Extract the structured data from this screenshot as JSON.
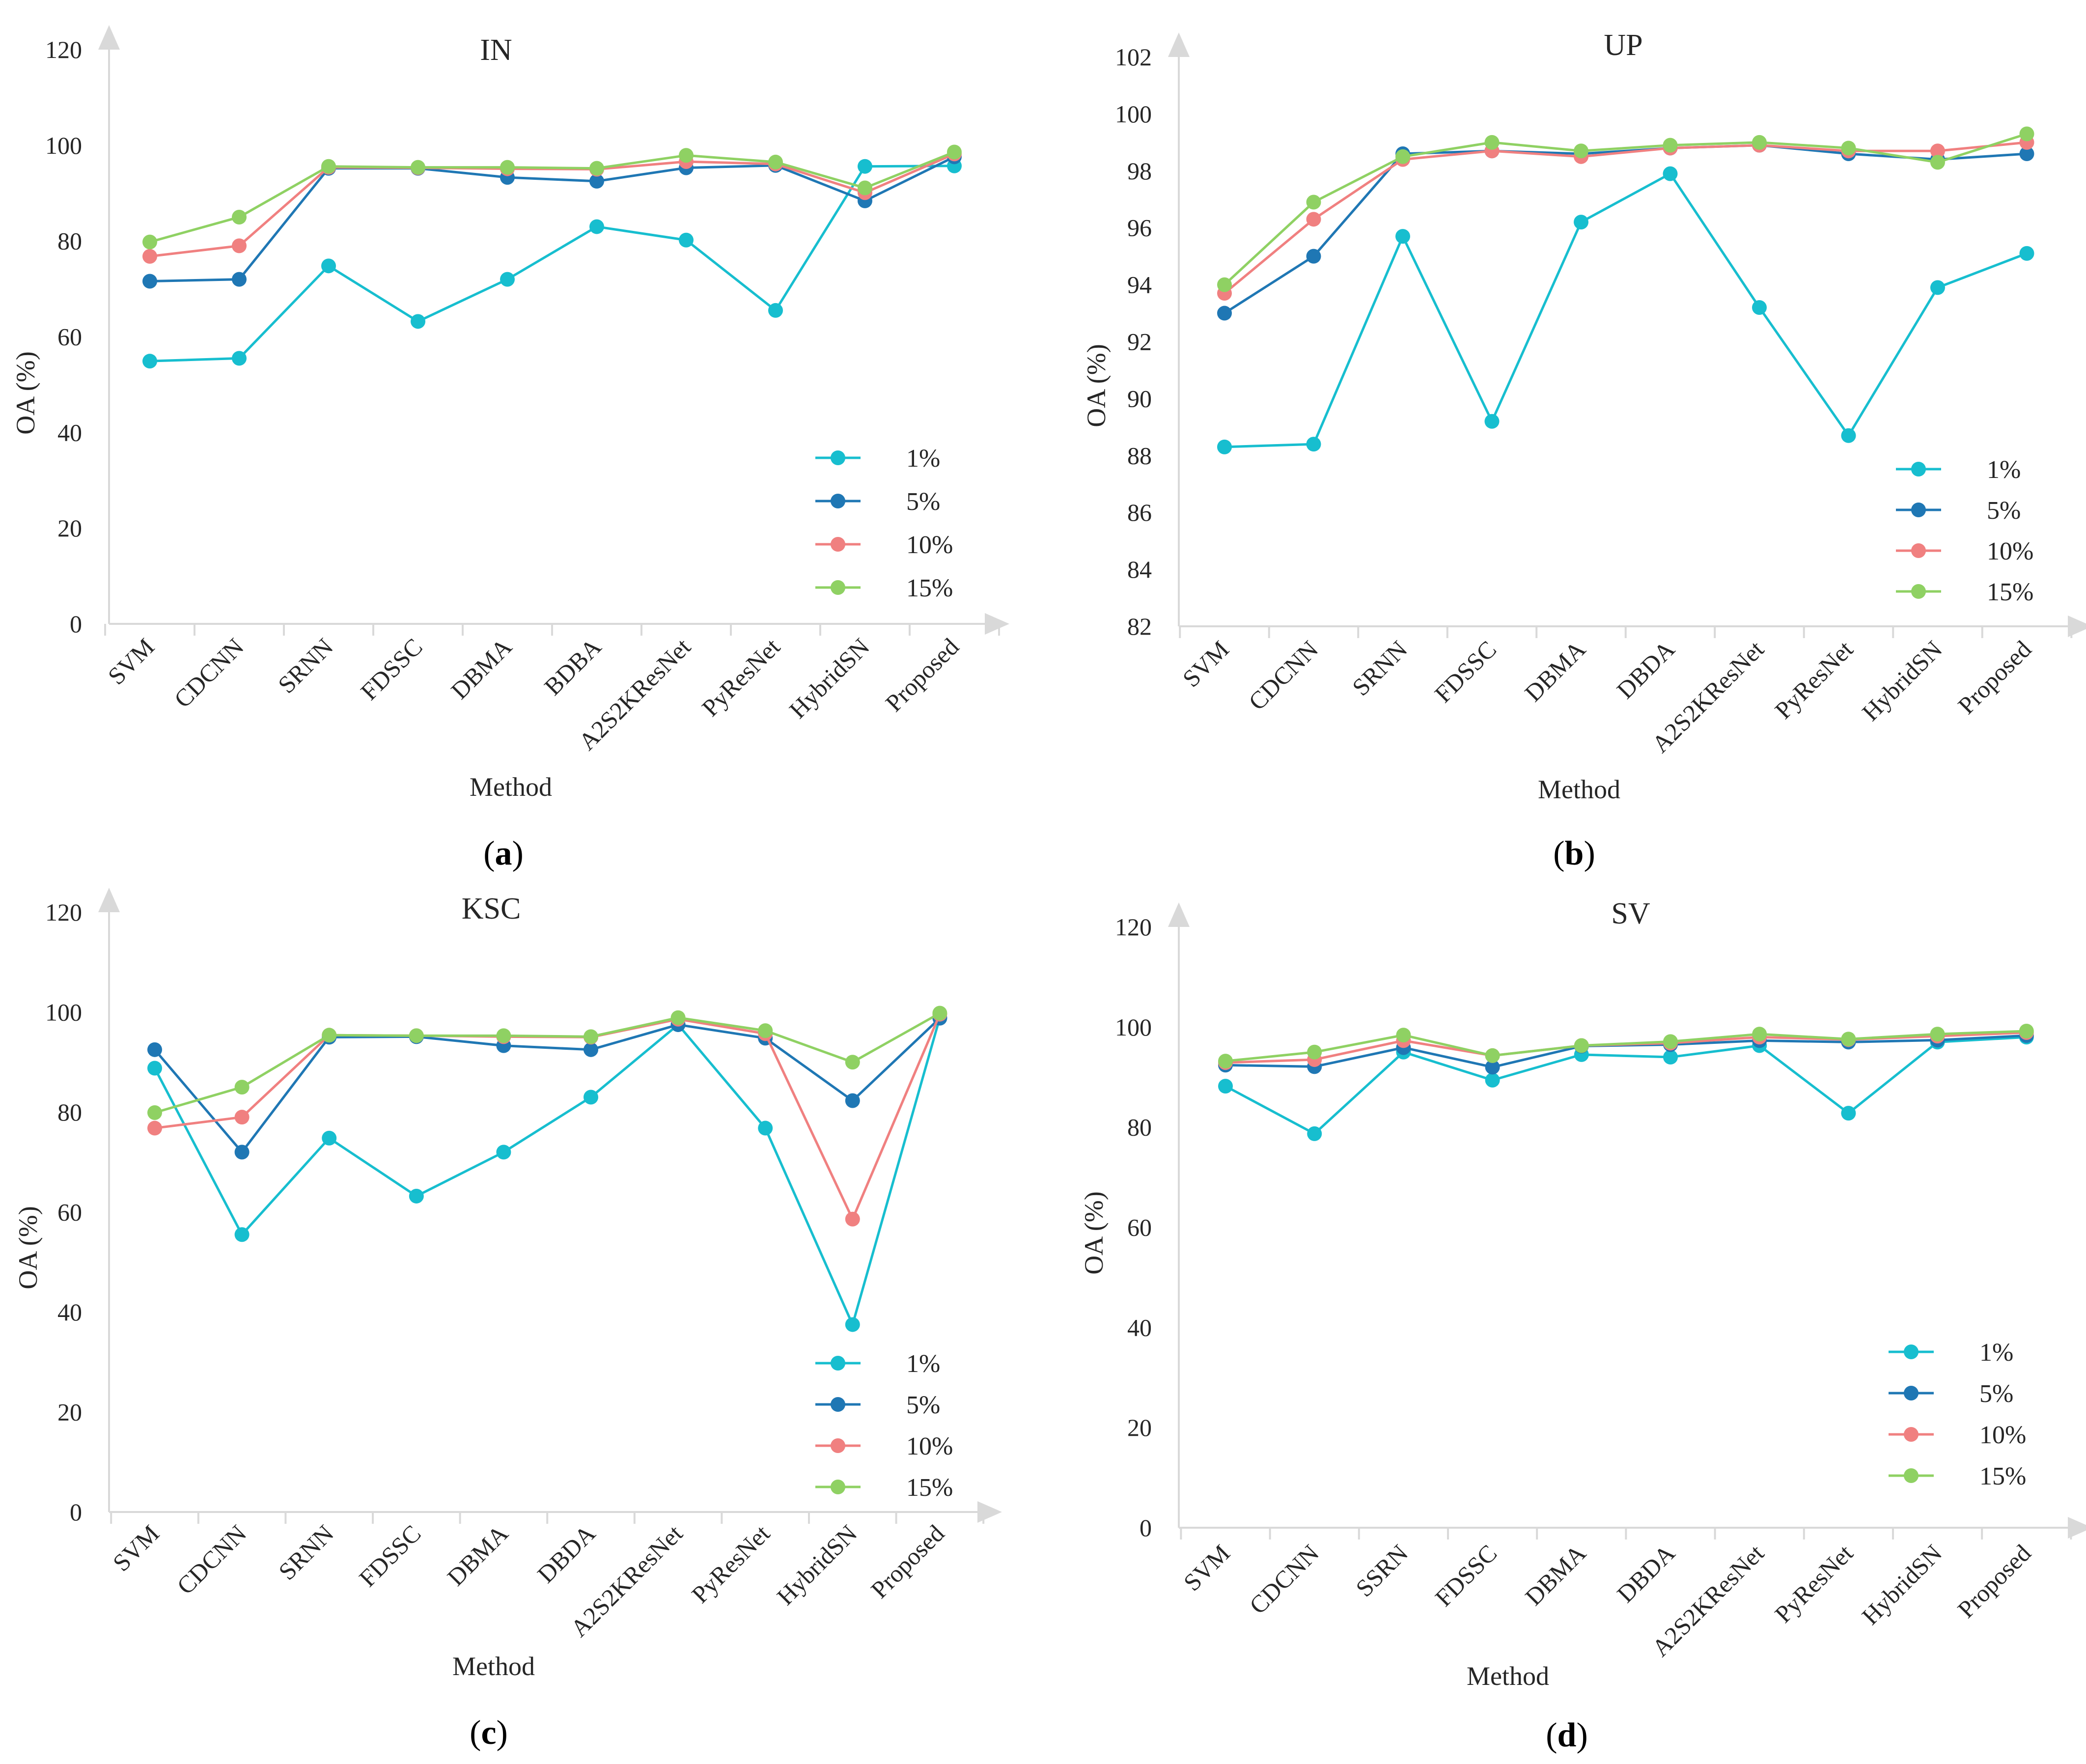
{
  "colors": {
    "1%": "#17becf",
    "5%": "#1f77b4",
    "10%": "#f08080",
    "15%": "#8fd163"
  },
  "chart_data": [
    {
      "type": "line",
      "panel_label": "a",
      "title": "IN",
      "xlabel": "Method",
      "ylabel": "OA (%)",
      "ylim": [
        0,
        120
      ],
      "ytick_labels": [
        "0",
        "20",
        "40",
        "60",
        "80",
        "100",
        "120"
      ],
      "categories": [
        "SVM",
        "CDCNN",
        "SRNN",
        "FDSSC",
        "DBMA",
        "BDBA",
        "A2S2KResNet",
        "PyResNet",
        "HybridSN",
        "Proposed"
      ],
      "legend_position": "bottom-right",
      "series": [
        {
          "name": "1%",
          "values": [
            54.9,
            55.5,
            74.8,
            63.2,
            72.0,
            83.0,
            80.2,
            65.5,
            95.6,
            95.7
          ]
        },
        {
          "name": "5%",
          "values": [
            71.6,
            72.0,
            95.2,
            95.2,
            93.3,
            92.5,
            95.3,
            95.8,
            88.4,
            97.6
          ]
        },
        {
          "name": "10%",
          "values": [
            76.8,
            79.0,
            95.4,
            95.3,
            95.1,
            95.0,
            96.6,
            96.1,
            90.1,
            98.2
          ]
        },
        {
          "name": "15%",
          "values": [
            79.8,
            85.0,
            95.6,
            95.4,
            95.4,
            95.2,
            97.9,
            96.5,
            91.1,
            98.6
          ]
        }
      ]
    },
    {
      "type": "line",
      "panel_label": "b",
      "title": "UP",
      "xlabel": "Method",
      "ylabel": "OA (%)",
      "ylim": [
        82,
        102
      ],
      "ytick_labels": [
        "82",
        "84",
        "86",
        "88",
        "90",
        "92",
        "94",
        "96",
        "98",
        "100",
        "102"
      ],
      "categories": [
        "SVM",
        "CDCNN",
        "SRNN",
        "FDSSC",
        "DBMA",
        "DBDA",
        "A2S2KResNet",
        "PyResNet",
        "HybridSN",
        "Proposed"
      ],
      "legend_position": "bottom-right",
      "series": [
        {
          "name": "1%",
          "values": [
            88.3,
            88.4,
            95.7,
            89.2,
            96.2,
            97.9,
            93.2,
            88.7,
            93.9,
            95.1
          ]
        },
        {
          "name": "5%",
          "values": [
            93.0,
            95.0,
            98.6,
            98.7,
            98.6,
            98.8,
            98.9,
            98.6,
            98.4,
            98.6
          ]
        },
        {
          "name": "10%",
          "values": [
            93.7,
            96.3,
            98.4,
            98.7,
            98.5,
            98.8,
            98.9,
            98.7,
            98.7,
            99.0
          ]
        },
        {
          "name": "15%",
          "values": [
            94.0,
            96.9,
            98.5,
            99.0,
            98.7,
            98.9,
            99.0,
            98.8,
            98.3,
            99.3
          ]
        }
      ]
    },
    {
      "type": "line",
      "panel_label": "c",
      "title": "KSC",
      "xlabel": "Method",
      "ylabel": "OA (%)",
      "ylim": [
        0,
        120
      ],
      "ytick_labels": [
        "0",
        "20",
        "40",
        "60",
        "80",
        "100",
        "120"
      ],
      "categories": [
        "SVM",
        "CDCNN",
        "SRNN",
        "FDSSC",
        "DBMA",
        "DBDA",
        "A2S2KResNet",
        "PyResNet",
        "HybridSN",
        "Proposed"
      ],
      "legend_position": "bottom-right",
      "series": [
        {
          "name": "1%",
          "values": [
            88.8,
            55.5,
            74.8,
            63.2,
            72.0,
            83.0,
            97.5,
            76.8,
            37.5,
            98.9
          ]
        },
        {
          "name": "5%",
          "values": [
            92.5,
            72.0,
            95.0,
            95.1,
            93.3,
            92.5,
            97.5,
            94.8,
            82.3,
            98.8
          ]
        },
        {
          "name": "10%",
          "values": [
            76.8,
            79.0,
            95.4,
            95.3,
            95.1,
            95.0,
            98.6,
            95.7,
            58.6,
            99.6
          ]
        },
        {
          "name": "15%",
          "values": [
            79.9,
            85.0,
            95.4,
            95.3,
            95.3,
            95.1,
            98.9,
            96.3,
            90.0,
            99.8
          ]
        }
      ]
    },
    {
      "type": "line",
      "panel_label": "d",
      "title": "SV",
      "xlabel": "Method",
      "ylabel": "OA (%)",
      "ylim": [
        0,
        120
      ],
      "ytick_labels": [
        "0",
        "20",
        "40",
        "60",
        "80",
        "100",
        "120"
      ],
      "categories": [
        "SVM",
        "CDCNN",
        "SSRN",
        "FDSSC",
        "DBMA",
        "DBDA",
        "A2S2KResNet",
        "PyResNet",
        "HybridSN",
        "Proposed"
      ],
      "legend_position": "bottom-right",
      "series": [
        {
          "name": "1%",
          "values": [
            88.2,
            78.7,
            95.0,
            89.4,
            94.5,
            94.0,
            96.3,
            82.8,
            97.0,
            98.0
          ]
        },
        {
          "name": "5%",
          "values": [
            92.4,
            92.1,
            95.9,
            92.0,
            96.2,
            96.5,
            97.3,
            97.0,
            97.4,
            98.3
          ]
        },
        {
          "name": "10%",
          "values": [
            92.9,
            93.5,
            97.3,
            94.3,
            96.3,
            96.8,
            98.0,
            97.5,
            98.2,
            98.9
          ]
        },
        {
          "name": "15%",
          "values": [
            93.2,
            95.0,
            98.4,
            94.3,
            96.3,
            97.1,
            98.6,
            97.6,
            98.6,
            99.2
          ]
        }
      ]
    }
  ]
}
